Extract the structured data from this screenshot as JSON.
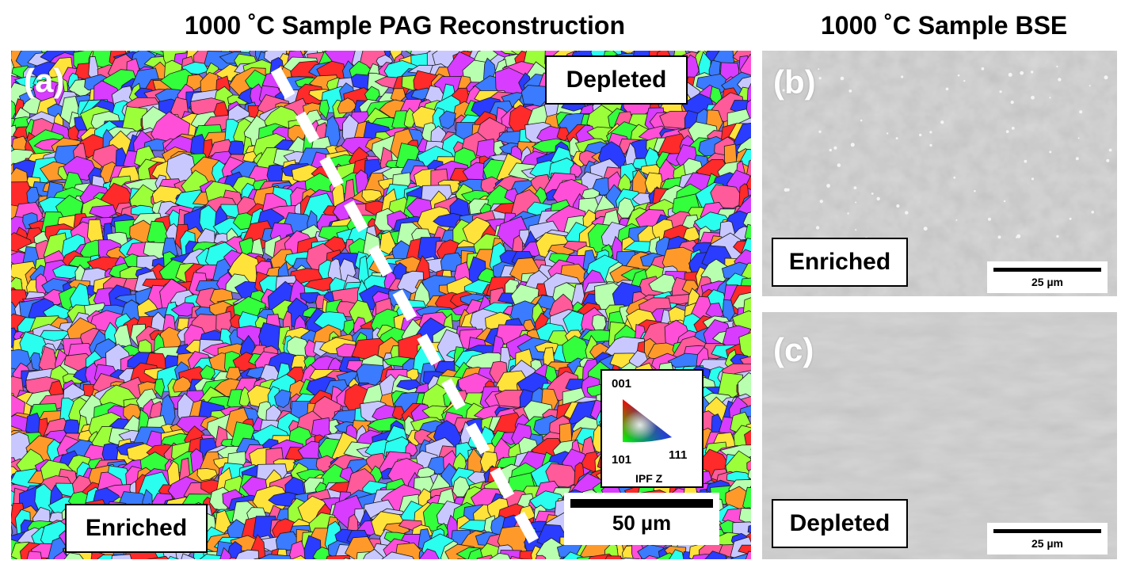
{
  "figure": {
    "title_left": "1000 ˚C Sample PAG Reconstruction",
    "title_right": "1000 ˚C Sample BSE"
  },
  "panel_a": {
    "letter": "(a)",
    "label_depleted": "Depleted",
    "label_enriched": "Enriched",
    "scale_bar": "50 µm",
    "legend": {
      "top": "001",
      "bottom_left": "101",
      "bottom_right": "111",
      "caption": "IPF Z"
    }
  },
  "panel_b": {
    "letter": "(b)",
    "label": "Enriched",
    "scale_bar": "25 µm"
  },
  "panel_c": {
    "letter": "(c)",
    "label": "Depleted",
    "scale_bar": "25 µm"
  },
  "colors": {
    "dashed_divider": "#ffffff",
    "grain_palette": [
      "#ff2a2a",
      "#ff4fd8",
      "#d83cff",
      "#2a3cff",
      "#3a7bff",
      "#2affef",
      "#34ff3c",
      "#9bff3a",
      "#ffe23a",
      "#ff9a2a",
      "#ff5a9a",
      "#b8ffb0",
      "#c8c8ff"
    ]
  }
}
